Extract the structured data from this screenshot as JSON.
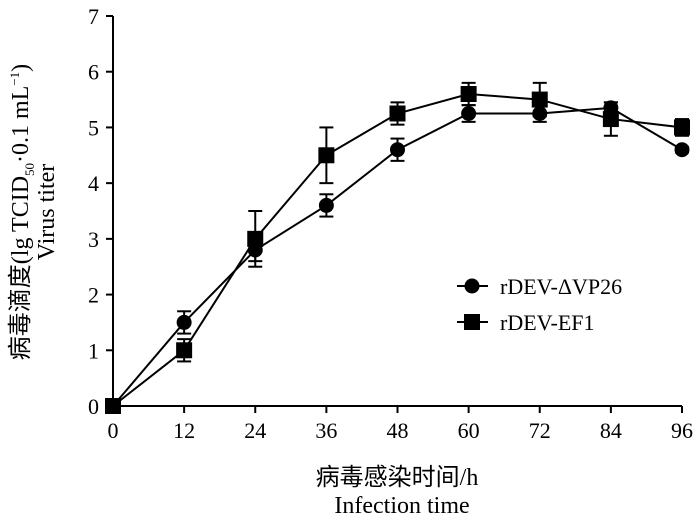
{
  "chart_data": {
    "type": "line",
    "xlabel_zh": "病毒感染时间/h",
    "xlabel_en": "Infection time",
    "ylabel_zh": "病毒滴度",
    "ylabel_unit_main": "(lg TCID",
    "ylabel_unit_sub": "50",
    "ylabel_unit_mid": "·0.1 mL",
    "ylabel_unit_sup": "−1",
    "ylabel_unit_end": ")",
    "ylabel_en": "Virus titer",
    "x": [
      0,
      12,
      24,
      36,
      48,
      60,
      72,
      84,
      96
    ],
    "xlim": [
      0,
      96
    ],
    "ylim": [
      0,
      7
    ],
    "xticks": [
      0,
      12,
      24,
      36,
      48,
      60,
      72,
      84,
      96
    ],
    "yticks": [
      0,
      1,
      2,
      3,
      4,
      5,
      6,
      7
    ],
    "grid": false,
    "legend_position": "right",
    "series": [
      {
        "name": "rDEV-ΔVP26",
        "marker": "circle",
        "values": [
          0,
          1.5,
          2.8,
          3.6,
          4.6,
          5.25,
          5.25,
          5.35,
          4.6
        ],
        "errors": [
          0,
          0.2,
          0.2,
          0.2,
          0.2,
          0.15,
          0.15,
          0.1,
          0.05
        ]
      },
      {
        "name": "rDEV-EF1",
        "marker": "square",
        "values": [
          0,
          1.0,
          3.0,
          4.5,
          5.25,
          5.6,
          5.5,
          5.15,
          5.0
        ],
        "errors": [
          0,
          0.2,
          0.5,
          0.5,
          0.2,
          0.2,
          0.3,
          0.3,
          0.15
        ]
      }
    ]
  }
}
